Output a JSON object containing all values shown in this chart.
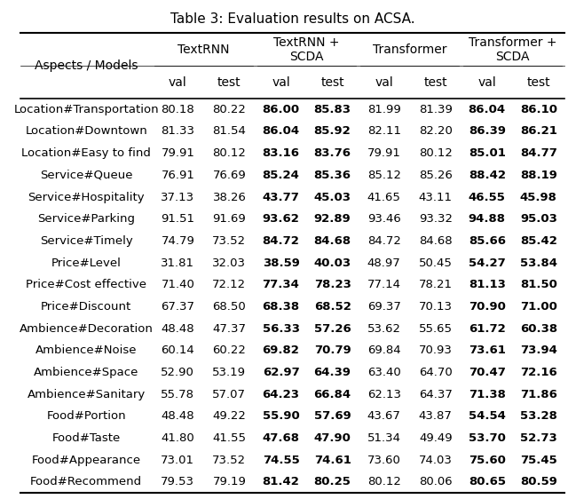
{
  "title": "Table 3: Evaluation results on ACSA.",
  "row_header": "Aspects / Models",
  "col_group_labels": [
    "TextRNN",
    "TextRNN +\nSCDA",
    "Transformer",
    "Transformer +\nSCDA"
  ],
  "subcol_labels": [
    "val",
    "test",
    "val",
    "test",
    "val",
    "test",
    "val",
    "test"
  ],
  "rows": [
    {
      "aspect": "Location#Transportation",
      "values": [
        80.18,
        80.22,
        86.0,
        85.83,
        81.99,
        81.39,
        86.04,
        86.1
      ],
      "bold": [
        false,
        false,
        true,
        true,
        false,
        false,
        true,
        true
      ]
    },
    {
      "aspect": "Location#Downtown",
      "values": [
        81.33,
        81.54,
        86.04,
        85.92,
        82.11,
        82.2,
        86.39,
        86.21
      ],
      "bold": [
        false,
        false,
        true,
        true,
        false,
        false,
        true,
        true
      ]
    },
    {
      "aspect": "Location#Easy to find",
      "values": [
        79.91,
        80.12,
        83.16,
        83.76,
        79.91,
        80.12,
        85.01,
        84.77
      ],
      "bold": [
        false,
        false,
        true,
        true,
        false,
        false,
        true,
        true
      ]
    },
    {
      "aspect": "Service#Queue",
      "values": [
        76.91,
        76.69,
        85.24,
        85.36,
        85.12,
        85.26,
        88.42,
        88.19
      ],
      "bold": [
        false,
        false,
        true,
        true,
        false,
        false,
        true,
        true
      ]
    },
    {
      "aspect": "Service#Hospitality",
      "values": [
        37.13,
        38.26,
        43.77,
        45.03,
        41.65,
        43.11,
        46.55,
        45.98
      ],
      "bold": [
        false,
        false,
        true,
        true,
        false,
        false,
        true,
        true
      ]
    },
    {
      "aspect": "Service#Parking",
      "values": [
        91.51,
        91.69,
        93.62,
        92.89,
        93.46,
        93.32,
        94.88,
        95.03
      ],
      "bold": [
        false,
        false,
        true,
        true,
        false,
        false,
        true,
        true
      ]
    },
    {
      "aspect": "Service#Timely",
      "values": [
        74.79,
        73.52,
        84.72,
        84.68,
        84.72,
        84.68,
        85.66,
        85.42
      ],
      "bold": [
        false,
        false,
        true,
        true,
        false,
        false,
        true,
        true
      ]
    },
    {
      "aspect": "Price#Level",
      "values": [
        31.81,
        32.03,
        38.59,
        40.03,
        48.97,
        50.45,
        54.27,
        53.84
      ],
      "bold": [
        false,
        false,
        true,
        true,
        false,
        false,
        true,
        true
      ]
    },
    {
      "aspect": "Price#Cost effective",
      "values": [
        71.4,
        72.12,
        77.34,
        78.23,
        77.14,
        78.21,
        81.13,
        81.5
      ],
      "bold": [
        false,
        false,
        true,
        true,
        false,
        false,
        true,
        true
      ]
    },
    {
      "aspect": "Price#Discount",
      "values": [
        67.37,
        68.5,
        68.38,
        68.52,
        69.37,
        70.13,
        70.9,
        71.0
      ],
      "bold": [
        false,
        false,
        true,
        true,
        false,
        false,
        true,
        true
      ]
    },
    {
      "aspect": "Ambience#Decoration",
      "values": [
        48.48,
        47.37,
        56.33,
        57.26,
        53.62,
        55.65,
        61.72,
        60.38
      ],
      "bold": [
        false,
        false,
        true,
        true,
        false,
        false,
        true,
        true
      ]
    },
    {
      "aspect": "Ambience#Noise",
      "values": [
        60.14,
        60.22,
        69.82,
        70.79,
        69.84,
        70.93,
        73.61,
        73.94
      ],
      "bold": [
        false,
        false,
        true,
        true,
        false,
        false,
        true,
        true
      ]
    },
    {
      "aspect": "Ambience#Space",
      "values": [
        52.9,
        53.19,
        62.97,
        64.39,
        63.4,
        64.7,
        70.47,
        72.16
      ],
      "bold": [
        false,
        false,
        true,
        true,
        false,
        false,
        true,
        true
      ]
    },
    {
      "aspect": "Ambience#Sanitary",
      "values": [
        55.78,
        57.07,
        64.23,
        66.84,
        62.13,
        64.37,
        71.38,
        71.86
      ],
      "bold": [
        false,
        false,
        true,
        true,
        false,
        false,
        true,
        true
      ]
    },
    {
      "aspect": "Food#Portion",
      "values": [
        48.48,
        49.22,
        55.9,
        57.69,
        43.67,
        43.87,
        54.54,
        53.28
      ],
      "bold": [
        false,
        false,
        true,
        true,
        false,
        false,
        true,
        true
      ]
    },
    {
      "aspect": "Food#Taste",
      "values": [
        41.8,
        41.55,
        47.68,
        47.9,
        51.34,
        49.49,
        53.7,
        52.73
      ],
      "bold": [
        false,
        false,
        true,
        true,
        false,
        false,
        true,
        true
      ]
    },
    {
      "aspect": "Food#Appearance",
      "values": [
        73.01,
        73.52,
        74.55,
        74.61,
        73.6,
        74.03,
        75.6,
        75.45
      ],
      "bold": [
        false,
        false,
        true,
        true,
        false,
        false,
        true,
        true
      ]
    },
    {
      "aspect": "Food#Recommend",
      "values": [
        79.53,
        79.19,
        81.42,
        80.25,
        80.12,
        80.06,
        80.65,
        80.59
      ],
      "bold": [
        false,
        false,
        true,
        true,
        false,
        false,
        true,
        true
      ]
    }
  ],
  "background_color": "#ffffff",
  "title_fontsize": 11,
  "header_fontsize": 10,
  "cell_fontsize": 9.5
}
